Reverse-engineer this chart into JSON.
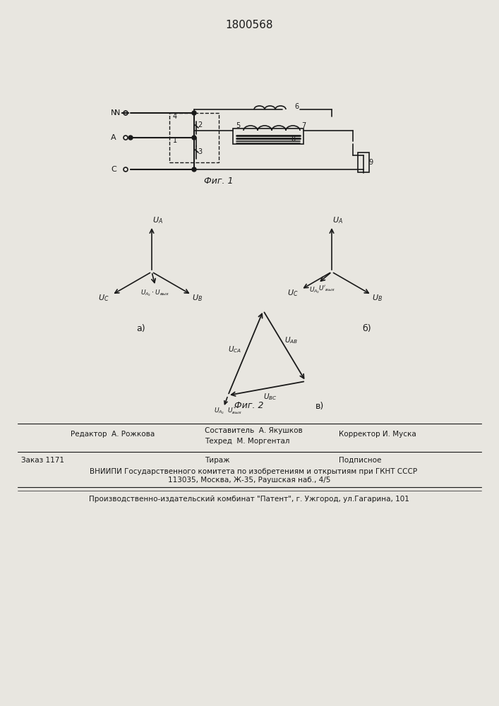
{
  "title": "1800568",
  "fig1_label": "Фиг. 1",
  "fig2_label": "Фиг. 2",
  "background_color": "#e8e6e0",
  "line_color": "#1a1a1a",
  "footer_lines": [
    "Редактор  А. Рожкова",
    "Заказ 1171        Тираж        Подписное",
    "    ВНИИПИ Государственного комитета по изобретениям и открытиям при ГКНТ СССР",
    "113035, Москва, Ж-35, Раушская наб., 4/5",
    "Производственно-издательский комбинат \"Патент\", г. Ужгород, ул.Гагарина, 101"
  ],
  "footer_col2": "Составитель  А. Якушков\nТехред  М. Моргентал",
  "footer_col3": "Корректор И. Муска"
}
